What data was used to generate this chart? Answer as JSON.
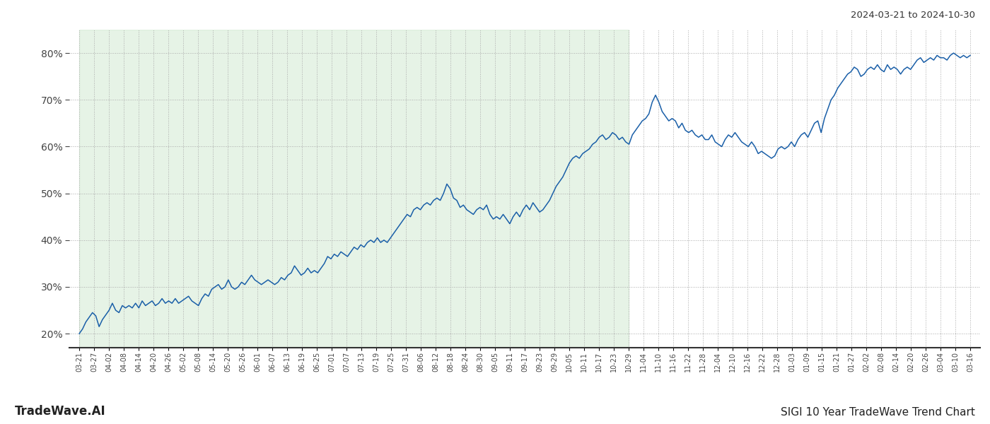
{
  "title_right": "2024-03-21 to 2024-10-30",
  "footer_left": "TradeWave.AI",
  "footer_right": "SIGI 10 Year TradeWave Trend Chart",
  "y_ticks": [
    20,
    30,
    40,
    50,
    60,
    70,
    80
  ],
  "y_min": 17,
  "y_max": 85,
  "shaded_color": "#c8e6c9",
  "shaded_alpha": 0.45,
  "line_color": "#1a5fa8",
  "line_width": 1.1,
  "background_color": "#ffffff",
  "grid_color": "#aaaaaa",
  "grid_style": ":",
  "x_labels": [
    "03-21",
    "03-27",
    "04-02",
    "04-08",
    "04-14",
    "04-20",
    "04-26",
    "05-02",
    "05-08",
    "05-14",
    "05-20",
    "05-26",
    "06-01",
    "06-07",
    "06-13",
    "06-19",
    "06-25",
    "07-01",
    "07-07",
    "07-13",
    "07-19",
    "07-25",
    "07-31",
    "08-06",
    "08-12",
    "08-18",
    "08-24",
    "08-30",
    "09-05",
    "09-11",
    "09-17",
    "09-23",
    "09-29",
    "10-05",
    "10-11",
    "10-17",
    "10-23",
    "10-29",
    "11-04",
    "11-10",
    "11-16",
    "11-22",
    "11-28",
    "12-04",
    "12-10",
    "12-16",
    "12-22",
    "12-28",
    "01-03",
    "01-09",
    "01-15",
    "01-21",
    "01-27",
    "02-02",
    "02-08",
    "02-14",
    "02-20",
    "02-26",
    "03-04",
    "03-10",
    "03-16"
  ],
  "shaded_end_label": "10-29",
  "values": [
    20.0,
    21.0,
    22.5,
    23.5,
    24.5,
    23.8,
    21.5,
    23.0,
    24.0,
    25.0,
    26.5,
    25.0,
    24.5,
    26.0,
    25.5,
    26.0,
    25.5,
    26.5,
    25.5,
    27.0,
    26.0,
    26.5,
    27.0,
    26.0,
    26.5,
    27.5,
    26.5,
    27.0,
    26.5,
    27.5,
    26.5,
    27.0,
    27.5,
    28.0,
    27.0,
    26.5,
    26.0,
    27.5,
    28.5,
    28.0,
    29.5,
    30.0,
    30.5,
    29.5,
    30.0,
    31.5,
    30.0,
    29.5,
    30.0,
    31.0,
    30.5,
    31.5,
    32.5,
    31.5,
    31.0,
    30.5,
    31.0,
    31.5,
    31.0,
    30.5,
    31.0,
    32.0,
    31.5,
    32.5,
    33.0,
    34.5,
    33.5,
    32.5,
    33.0,
    34.0,
    33.0,
    33.5,
    33.0,
    34.0,
    35.0,
    36.5,
    36.0,
    37.0,
    36.5,
    37.5,
    37.0,
    36.5,
    37.5,
    38.5,
    38.0,
    39.0,
    38.5,
    39.5,
    40.0,
    39.5,
    40.5,
    39.5,
    40.0,
    39.5,
    40.5,
    41.5,
    42.5,
    43.5,
    44.5,
    45.5,
    45.0,
    46.5,
    47.0,
    46.5,
    47.5,
    48.0,
    47.5,
    48.5,
    49.0,
    48.5,
    50.0,
    52.0,
    51.0,
    49.0,
    48.5,
    47.0,
    47.5,
    46.5,
    46.0,
    45.5,
    46.5,
    47.0,
    46.5,
    47.5,
    45.5,
    44.5,
    45.0,
    44.5,
    45.5,
    44.5,
    43.5,
    45.0,
    46.0,
    45.0,
    46.5,
    47.5,
    46.5,
    48.0,
    47.0,
    46.0,
    46.5,
    47.5,
    48.5,
    50.0,
    51.5,
    52.5,
    53.5,
    55.0,
    56.5,
    57.5,
    58.0,
    57.5,
    58.5,
    59.0,
    59.5,
    60.5,
    61.0,
    62.0,
    62.5,
    61.5,
    62.0,
    63.0,
    62.5,
    61.5,
    62.0,
    61.0,
    60.5,
    62.5,
    63.5,
    64.5,
    65.5,
    66.0,
    67.0,
    69.5,
    71.0,
    69.5,
    67.5,
    66.5,
    65.5,
    66.0,
    65.5,
    64.0,
    65.0,
    63.5,
    63.0,
    63.5,
    62.5,
    62.0,
    62.5,
    61.5,
    61.5,
    62.5,
    61.0,
    60.5,
    60.0,
    61.5,
    62.5,
    62.0,
    63.0,
    62.0,
    61.0,
    60.5,
    60.0,
    61.0,
    60.0,
    58.5,
    59.0,
    58.5,
    58.0,
    57.5,
    58.0,
    59.5,
    60.0,
    59.5,
    60.0,
    61.0,
    60.0,
    61.5,
    62.5,
    63.0,
    62.0,
    63.5,
    65.0,
    65.5,
    63.0,
    66.0,
    68.0,
    70.0,
    71.0,
    72.5,
    73.5,
    74.5,
    75.5,
    76.0,
    77.0,
    76.5,
    75.0,
    75.5,
    76.5,
    77.0,
    76.5,
    77.5,
    76.5,
    76.0,
    77.5,
    76.5,
    77.0,
    76.5,
    75.5,
    76.5,
    77.0,
    76.5,
    77.5,
    78.5,
    79.0,
    78.0,
    78.5,
    79.0,
    78.5,
    79.5,
    79.0,
    79.0,
    78.5,
    79.5,
    80.0,
    79.5,
    79.0,
    79.5,
    79.0,
    79.5
  ]
}
